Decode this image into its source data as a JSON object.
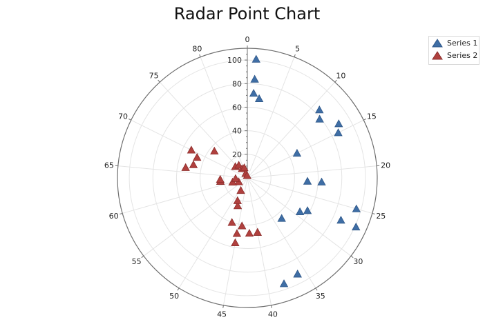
{
  "chart_data": {
    "type": "scatter",
    "subtype": "polar",
    "title": "Radar Point Chart",
    "angle_axis": {
      "min": 0,
      "max": 85,
      "tick_labels": [
        "0",
        "5",
        "10",
        "15",
        "20",
        "25",
        "30",
        "35",
        "40",
        "45",
        "50",
        "55",
        "60",
        "65",
        "70",
        "75",
        "80"
      ],
      "direction": "clockwise",
      "zero_at": "top"
    },
    "radial_axis": {
      "min": 0,
      "max": 110,
      "tick_labels": [
        "20",
        "40",
        "60",
        "80",
        "100"
      ],
      "grid": true
    },
    "legend": {
      "position": "top-right"
    },
    "series": [
      {
        "name": "Series 1",
        "color": "#3f6ea5",
        "marker": "triangle",
        "points": [
          [
            1,
            101
          ],
          [
            1,
            84
          ],
          [
            1,
            72
          ],
          [
            2,
            68
          ],
          [
            11,
            84
          ],
          [
            12,
            79
          ],
          [
            14,
            90
          ],
          [
            15,
            86
          ],
          [
            15,
            47
          ],
          [
            22,
            51
          ],
          [
            22,
            63
          ],
          [
            25,
            96
          ],
          [
            27,
            101
          ],
          [
            27,
            87
          ],
          [
            28,
            58
          ],
          [
            29,
            53
          ],
          [
            33,
            45
          ],
          [
            36,
            92
          ],
          [
            36,
            92
          ],
          [
            38,
            95
          ]
        ]
      },
      {
        "name": "Series 2",
        "color": "#b0403e",
        "marker": "triangle",
        "points": [
          [
            40,
            47
          ],
          [
            40,
            47
          ],
          [
            42,
            47
          ],
          [
            44,
            41
          ],
          [
            45,
            56
          ],
          [
            45,
            48
          ],
          [
            47,
            40
          ],
          [
            47,
            25
          ],
          [
            48,
            21
          ],
          [
            49,
            12
          ],
          [
            58,
            8
          ],
          [
            60,
            13
          ],
          [
            62,
            23
          ],
          [
            63,
            10
          ],
          [
            63,
            23
          ],
          [
            66,
            53
          ],
          [
            67,
            47
          ],
          [
            69,
            46
          ],
          [
            70,
            53
          ],
          [
            73,
            36
          ],
          [
            74,
            14
          ],
          [
            77,
            13
          ],
          [
            78,
            9
          ],
          [
            80,
            4
          ],
          [
            81,
            9
          ],
          [
            84,
            2
          ]
        ]
      }
    ]
  }
}
